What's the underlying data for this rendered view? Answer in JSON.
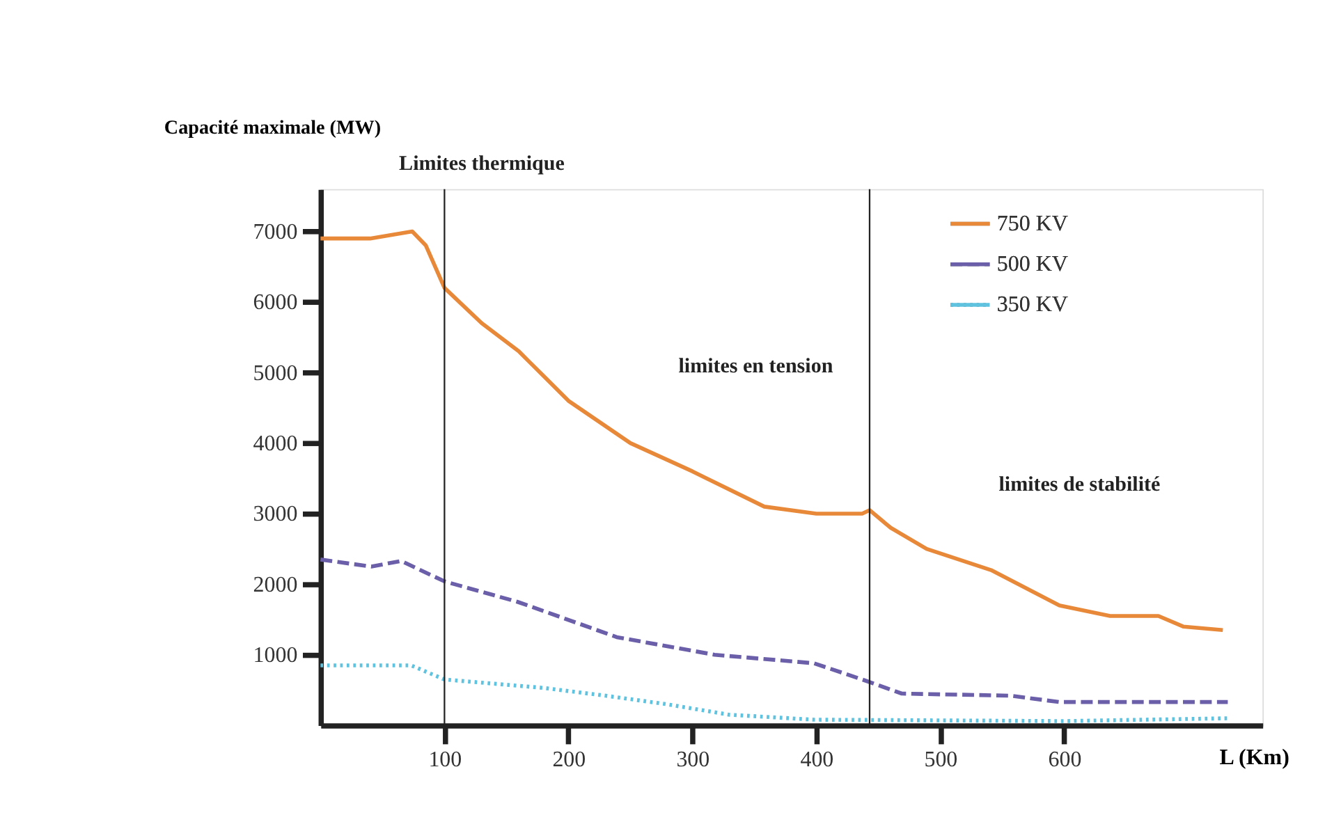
{
  "chart_data": {
    "type": "line",
    "ylabel": "Capacité maximale (MW)",
    "xlabel": "L (Km)",
    "xlim": [
      0,
      760
    ],
    "xticks": [
      100,
      200,
      300,
      400,
      500,
      600
    ],
    "ylim": [
      0,
      7600
    ],
    "yticks": [
      1000,
      2000,
      3000,
      4000,
      5000,
      6000,
      7000
    ],
    "grid": false,
    "legend": "top right",
    "marker": "none",
    "annotations": [
      "Limites thermique",
      "limites en tension",
      "limites de stabilité"
    ],
    "ref_lines": [
      {
        "axis": "x",
        "value": 100,
        "color": "#222222"
      },
      {
        "axis": "x",
        "value": 443,
        "color": "#222222"
      }
    ],
    "series": [
      {
        "name": "750 KV",
        "color": "#e8893a",
        "line_style": "solid",
        "x": [
          0,
          40,
          74,
          85,
          100,
          130,
          160,
          180,
          200,
          250,
          300,
          358,
          400,
          437,
          443,
          460,
          489,
          541,
          596,
          637,
          676,
          696,
          728
        ],
        "values": [
          6900,
          6900,
          7000,
          6800,
          6200,
          5700,
          5300,
          4950,
          4600,
          4000,
          3600,
          3100,
          3000,
          3000,
          3050,
          2800,
          2500,
          2200,
          1700,
          1550,
          1550,
          1400,
          1350
        ]
      },
      {
        "name": "500 KV",
        "color": "#6a5fa8",
        "line_style": "dashed",
        "x": [
          0,
          41,
          65,
          100,
          159,
          180,
          239,
          318,
          398,
          437,
          469,
          557,
          596,
          732
        ],
        "values": [
          2350,
          2250,
          2330,
          2040,
          1750,
          1620,
          1250,
          1000,
          880,
          650,
          450,
          420,
          330,
          330
        ]
      },
      {
        "name": "350 KV",
        "color": "#5fc3e0",
        "line_style": "dotted",
        "x": [
          0,
          73,
          100,
          180,
          230,
          279,
          330,
          398,
          500,
          600,
          732
        ],
        "values": [
          850,
          850,
          650,
          530,
          420,
          300,
          150,
          80,
          70,
          60,
          100
        ]
      }
    ]
  }
}
